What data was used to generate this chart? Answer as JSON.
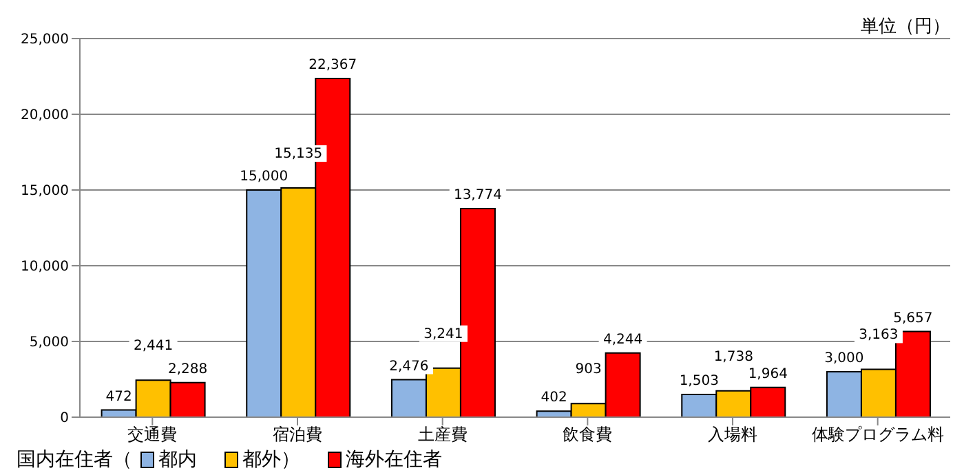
{
  "chart_data": {
    "type": "bar",
    "ylabel": "単位（円）",
    "categories": [
      "交通費",
      "宿泊費",
      "土産費",
      "飲食費",
      "入場料",
      "体験プログラム料"
    ],
    "series": [
      {
        "name": "都内",
        "color": "#8eb4e3",
        "values": [
          472,
          15000,
          2476,
          402,
          1503,
          3000
        ],
        "value_labels": [
          "472",
          "15,000",
          "2,476",
          "402",
          "1,503",
          "3,000"
        ]
      },
      {
        "name": "都外）",
        "color": "#ffc000",
        "values": [
          2441,
          15135,
          3241,
          903,
          1738,
          3163
        ],
        "value_labels": [
          "2,441",
          "15,135",
          "3,241",
          "903",
          "1,738",
          "3,163"
        ]
      },
      {
        "name": "海外在住者",
        "color": "#ff0000",
        "values": [
          2288,
          22367,
          13774,
          4244,
          1964,
          5657
        ],
        "value_labels": [
          "2,288",
          "22,367",
          "13,774",
          "4,244",
          "1,964",
          "5,657"
        ]
      }
    ],
    "legend_title": "国内在住者（",
    "legend": "bottom left",
    "ylim": [
      0,
      25000
    ],
    "yticks": [
      0,
      {
        "value": 5000,
        "label": "5,000"
      },
      {
        "value": 10000,
        "label": "10,000"
      },
      {
        "value": 15000,
        "label": "15,000"
      },
      {
        "value": 20000,
        "label": "20,000"
      },
      {
        "value": 25000,
        "label": "25,000"
      }
    ],
    "grid": "y"
  }
}
